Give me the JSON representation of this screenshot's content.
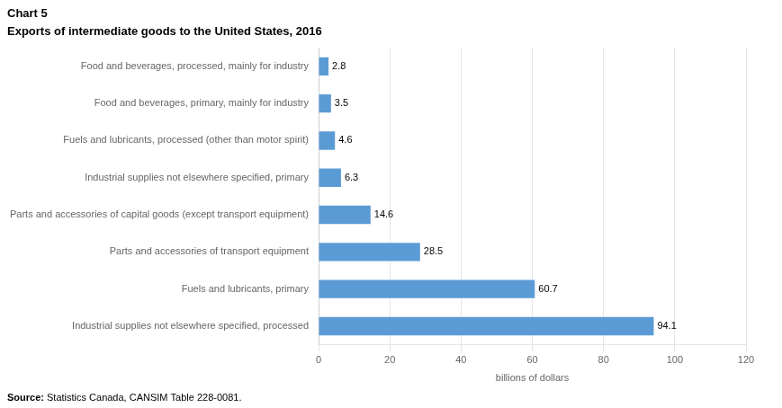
{
  "chart_data": {
    "type": "bar",
    "orientation": "horizontal",
    "title": "Chart 5",
    "subtitle": "Exports of intermediate goods to the United States, 2016",
    "source": "Source: Statistics Canada, CANSIM Table 228-0081.",
    "categories": [
      "Industrial supplies not elsewhere specified, processed",
      "Fuels and lubricants, primary",
      "Parts and accessories of transport equipment",
      "Parts and accessories of capital goods (except transport equipment)",
      "Industrial supplies not elsewhere specified, primary",
      "Fuels and lubricants, processed (other than motor spirit)",
      "Food and beverages, primary, mainly for industry",
      "Food and beverages, processed, mainly for industry"
    ],
    "values": [
      94.1,
      60.7,
      28.5,
      14.6,
      6.3,
      4.6,
      3.5,
      2.8
    ],
    "color": "#5B9BD5",
    "xlabel": "billions of dollars",
    "xlim": [
      0,
      120
    ],
    "xticks": [
      0,
      20,
      40,
      60,
      80,
      100,
      120
    ],
    "grid": true,
    "data_labels": true
  }
}
